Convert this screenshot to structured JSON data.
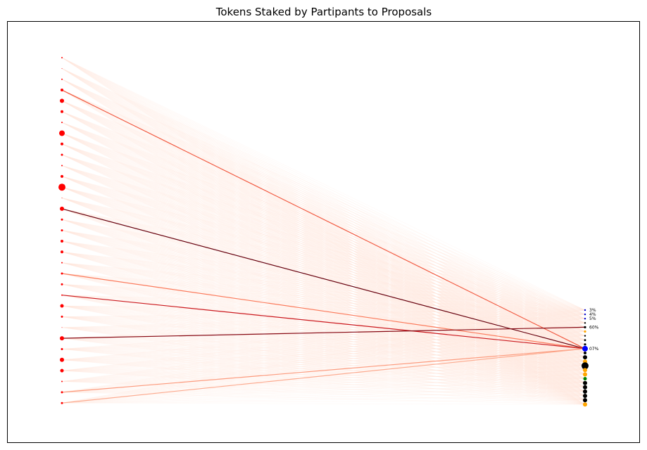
{
  "chart_data": {
    "type": "network",
    "title": "Tokens Staked by Partipants to Proposals",
    "axes_visible": false,
    "participants": {
      "count": 33,
      "color": "#ff0000",
      "sizes": [
        1,
        0.5,
        1,
        2,
        3,
        2,
        1,
        4,
        2,
        1.5,
        1,
        2,
        5,
        0.5,
        3,
        1.5,
        1.5,
        2,
        2,
        1,
        1.5,
        1.5,
        1,
        2.5,
        1.5,
        0.5,
        3,
        1.5,
        3,
        2.5,
        1,
        1.5,
        1.5
      ]
    },
    "proposals": [
      {
        "color": "#0000cc",
        "size": 1.2,
        "label": "3%"
      },
      {
        "color": "#0000cc",
        "size": 1.2,
        "label": "4%"
      },
      {
        "color": "#0000cc",
        "size": 1.2,
        "label": "5%"
      },
      {
        "color": "#000000",
        "size": 1.2,
        "label": ""
      },
      {
        "color": "#000000",
        "size": 1.6,
        "label": "60%"
      },
      {
        "color": "#ffa500",
        "size": 1.6,
        "label": ""
      },
      {
        "color": "#000000",
        "size": 1.2,
        "label": ""
      },
      {
        "color": "#000000",
        "size": 1.4,
        "label": ""
      },
      {
        "color": "#000000",
        "size": 1.6,
        "label": ""
      },
      {
        "color": "#0000ff",
        "size": 4,
        "label": "07%"
      },
      {
        "color": "#000000",
        "size": 2,
        "label": ""
      },
      {
        "color": "#000000",
        "size": 3,
        "label": ""
      },
      {
        "color": "#ffa500",
        "size": 3,
        "label": ""
      },
      {
        "color": "#000000",
        "size": 5,
        "label": ""
      },
      {
        "color": "#ffa500",
        "size": 3,
        "label": ""
      },
      {
        "color": "#ffa500",
        "size": 3,
        "label": ""
      },
      {
        "color": "#008000",
        "size": 2.5,
        "label": ""
      },
      {
        "color": "#000000",
        "size": 3,
        "label": ""
      },
      {
        "color": "#000000",
        "size": 3,
        "label": ""
      },
      {
        "color": "#000000",
        "size": 3,
        "label": ""
      },
      {
        "color": "#000000",
        "size": 3,
        "label": ""
      },
      {
        "color": "#000000",
        "size": 3,
        "label": ""
      },
      {
        "color": "#ffa500",
        "size": 3,
        "label": ""
      }
    ],
    "edge_colormap": "Reds",
    "strong_edges": [
      {
        "participant": 3,
        "proposal": 9,
        "weight": 0.55
      },
      {
        "participant": 14,
        "proposal": 9,
        "weight": 1.0
      },
      {
        "participant": 20,
        "proposal": 9,
        "weight": 0.45
      },
      {
        "participant": 22,
        "proposal": 9,
        "weight": 0.75
      },
      {
        "participant": 26,
        "proposal": 4,
        "weight": 0.92
      },
      {
        "participant": 31,
        "proposal": 9,
        "weight": 0.35
      },
      {
        "participant": 32,
        "proposal": 9,
        "weight": 0.3
      }
    ]
  }
}
